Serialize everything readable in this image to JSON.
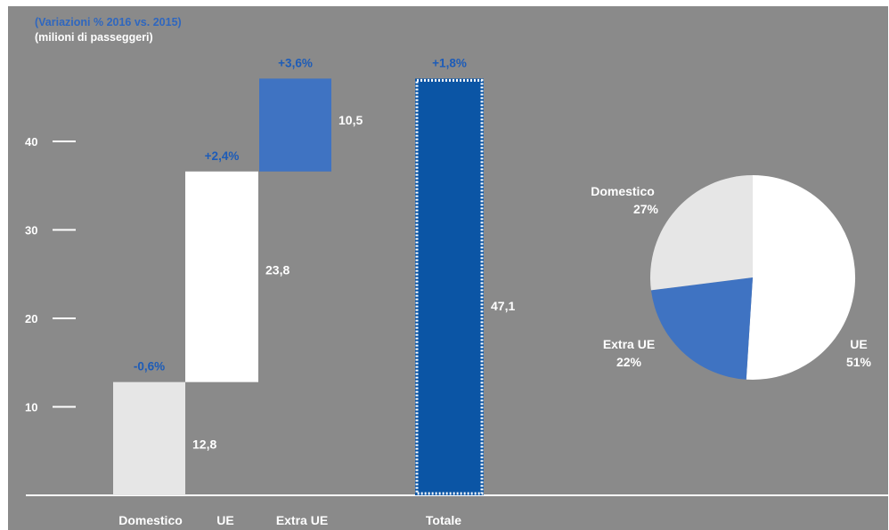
{
  "header": {
    "subtitle": "(Variazioni % 2016 vs. 2015)",
    "unit": "(milioni di passeggeri)"
  },
  "colors": {
    "background": "#8a8a8a",
    "domestico": "#e6e6e6",
    "ue": "#ffffff",
    "extra_ue": "#3f73c2",
    "totale": "#0b55a5",
    "change_label": "#1d5cb8",
    "text": "#ffffff"
  },
  "chart_data": [
    {
      "type": "bar",
      "variant": "waterfall",
      "categories": [
        "Domestico",
        "UE",
        "Extra UE",
        "Totale"
      ],
      "values": [
        12.8,
        23.8,
        10.5,
        47.1
      ],
      "value_labels": [
        "12,8",
        "23,8",
        "10,5",
        "47,1"
      ],
      "changes": [
        "-0,6%",
        "+2,4%",
        "+3,6%",
        "+1,8%"
      ],
      "yticks": [
        10,
        20,
        30,
        40
      ],
      "ylim": [
        0,
        50
      ],
      "grid": false,
      "legend": "none"
    },
    {
      "type": "pie",
      "labels": [
        "UE",
        "Extra UE",
        "Domestico"
      ],
      "values": [
        51,
        22,
        27
      ],
      "value_labels": [
        "51%",
        "22%",
        "27%"
      ],
      "colors": [
        "#ffffff",
        "#3f73c2",
        "#e6e6e6"
      ]
    }
  ]
}
